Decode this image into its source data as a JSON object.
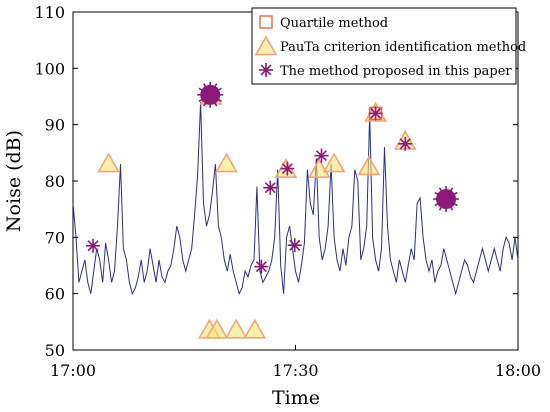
{
  "chart_data": {
    "type": "line",
    "xlabel": "Time",
    "ylabel": "Noise (dB)",
    "x_ticks": [
      {
        "value": 0,
        "label": "17:00"
      },
      {
        "value": 30,
        "label": "17:30"
      },
      {
        "value": 60,
        "label": "18:00"
      }
    ],
    "xlim": [
      0,
      60
    ],
    "ylim": [
      50,
      110
    ],
    "y_ticks": [
      50,
      60,
      70,
      80,
      90,
      100,
      110
    ],
    "grid": false,
    "legend_position": "top-right",
    "colors": {
      "line": "#2b2f8a",
      "quartile": "#e8674a",
      "pauta_stroke": "#f2a57a",
      "pauta_fill": "#fbe46a",
      "proposed": "#8b1a7a",
      "proposed_blob": "#8b1a7a"
    },
    "noise_series": {
      "x": [
        0,
        0.4,
        0.8,
        1.2,
        1.6,
        2.0,
        2.4,
        2.8,
        3.2,
        3.6,
        4.0,
        4.4,
        4.8,
        5.2,
        5.6,
        6.0,
        6.4,
        6.8,
        7.2,
        7.6,
        8.0,
        8.4,
        8.8,
        9.2,
        9.6,
        10.0,
        10.4,
        10.8,
        11.2,
        11.6,
        12.0,
        12.4,
        12.8,
        13.2,
        13.6,
        14.0,
        14.4,
        14.8,
        15.2,
        15.6,
        16.0,
        16.4,
        16.8,
        17.2,
        17.6,
        18.0,
        18.4,
        18.8,
        19.2,
        19.6,
        20.0,
        20.4,
        20.8,
        21.2,
        21.6,
        22.0,
        22.4,
        22.8,
        23.2,
        23.6,
        24.0,
        24.4,
        24.8,
        25.2,
        25.6,
        26.0,
        26.4,
        26.8,
        27.2,
        27.6,
        28.0,
        28.4,
        28.8,
        29.2,
        29.6,
        30.0,
        30.4,
        30.8,
        31.2,
        31.6,
        32.0,
        32.4,
        32.8,
        33.2,
        33.6,
        34.0,
        34.4,
        34.8,
        35.2,
        35.6,
        36.0,
        36.4,
        36.8,
        37.2,
        37.6,
        38.0,
        38.4,
        38.8,
        39.2,
        39.6,
        40.0,
        40.4,
        40.8,
        41.2,
        41.6,
        42.0,
        42.4,
        42.8,
        43.2,
        43.6,
        44.0,
        44.4,
        44.8,
        45.2,
        45.6,
        46.0,
        46.4,
        46.8,
        47.2,
        47.6,
        48.0,
        48.4,
        48.8,
        49.2,
        49.6,
        50.0,
        50.4,
        50.8,
        51.2,
        51.6,
        52.0,
        52.4,
        52.8,
        53.2,
        53.6,
        54.0,
        54.4,
        54.8,
        55.2,
        55.6,
        56.0,
        56.4,
        56.8,
        57.2,
        57.6,
        58.0,
        58.4,
        58.8,
        59.2,
        59.6,
        60.0
      ],
      "y": [
        76,
        70,
        62,
        64,
        66,
        62,
        60,
        64,
        68,
        66,
        62,
        69,
        66,
        62,
        64,
        72,
        83,
        68,
        66,
        62,
        60,
        61,
        63,
        66,
        62,
        64,
        68,
        65,
        62,
        66,
        63,
        62,
        64,
        65,
        68,
        72,
        70,
        66,
        64,
        66,
        68,
        74,
        81,
        94,
        76,
        72,
        74,
        78,
        83,
        72,
        70,
        66,
        64,
        67,
        64,
        62,
        60,
        61,
        64,
        63,
        65,
        66,
        79,
        64,
        62,
        63,
        64,
        66,
        70,
        82,
        65,
        60,
        70,
        72,
        68,
        64,
        62,
        65,
        69,
        82,
        76,
        74,
        84,
        70,
        66,
        68,
        72,
        83,
        70,
        66,
        64,
        68,
        65,
        70,
        72,
        82,
        80,
        66,
        68,
        72,
        92,
        70,
        66,
        64,
        68,
        86,
        72,
        66,
        64,
        62,
        66,
        64,
        62,
        65,
        68,
        66,
        76,
        77,
        70,
        66,
        64,
        66,
        62,
        64,
        65,
        68,
        66,
        64,
        62,
        60,
        62,
        64,
        66,
        65,
        63,
        62,
        64,
        66,
        68,
        66,
        64,
        66,
        68,
        66,
        64,
        68,
        70,
        69,
        66,
        70,
        66
      ]
    },
    "quartile_points": [
      {
        "x": 18.6,
        "y": 95.5
      },
      {
        "x": 40.8,
        "y": 92
      }
    ],
    "pauta_points": [
      {
        "x": 4.8,
        "y": 83
      },
      {
        "x": 18.6,
        "y": 95
      },
      {
        "x": 20.7,
        "y": 83
      },
      {
        "x": 28.7,
        "y": 82
      },
      {
        "x": 33.2,
        "y": 82
      },
      {
        "x": 35.2,
        "y": 83
      },
      {
        "x": 39.9,
        "y": 82.5
      },
      {
        "x": 40.8,
        "y": 92
      },
      {
        "x": 44.8,
        "y": 87
      },
      {
        "x": 18.4,
        "y": 53.5
      },
      {
        "x": 19.4,
        "y": 53.5
      },
      {
        "x": 22.0,
        "y": 53.5
      },
      {
        "x": 24.5,
        "y": 53.5
      }
    ],
    "proposed_points": [
      {
        "x": 2.7,
        "y": 68.5
      },
      {
        "x": 25.4,
        "y": 64.8
      },
      {
        "x": 26.6,
        "y": 78.8
      },
      {
        "x": 28.9,
        "y": 82.2
      },
      {
        "x": 29.9,
        "y": 68.6
      },
      {
        "x": 33.5,
        "y": 84.5
      },
      {
        "x": 40.8,
        "y": 92
      },
      {
        "x": 44.8,
        "y": 86.6
      }
    ],
    "proposed_clusters": [
      {
        "x": 18.5,
        "y": 95.3
      },
      {
        "x": 50.3,
        "y": 76.8
      }
    ],
    "legend": [
      {
        "label": "Quartile method",
        "marker": "square"
      },
      {
        "label": "PauTa criterion identification method",
        "marker": "triangle"
      },
      {
        "label": "The method proposed in this paper",
        "marker": "asterisk"
      }
    ]
  }
}
